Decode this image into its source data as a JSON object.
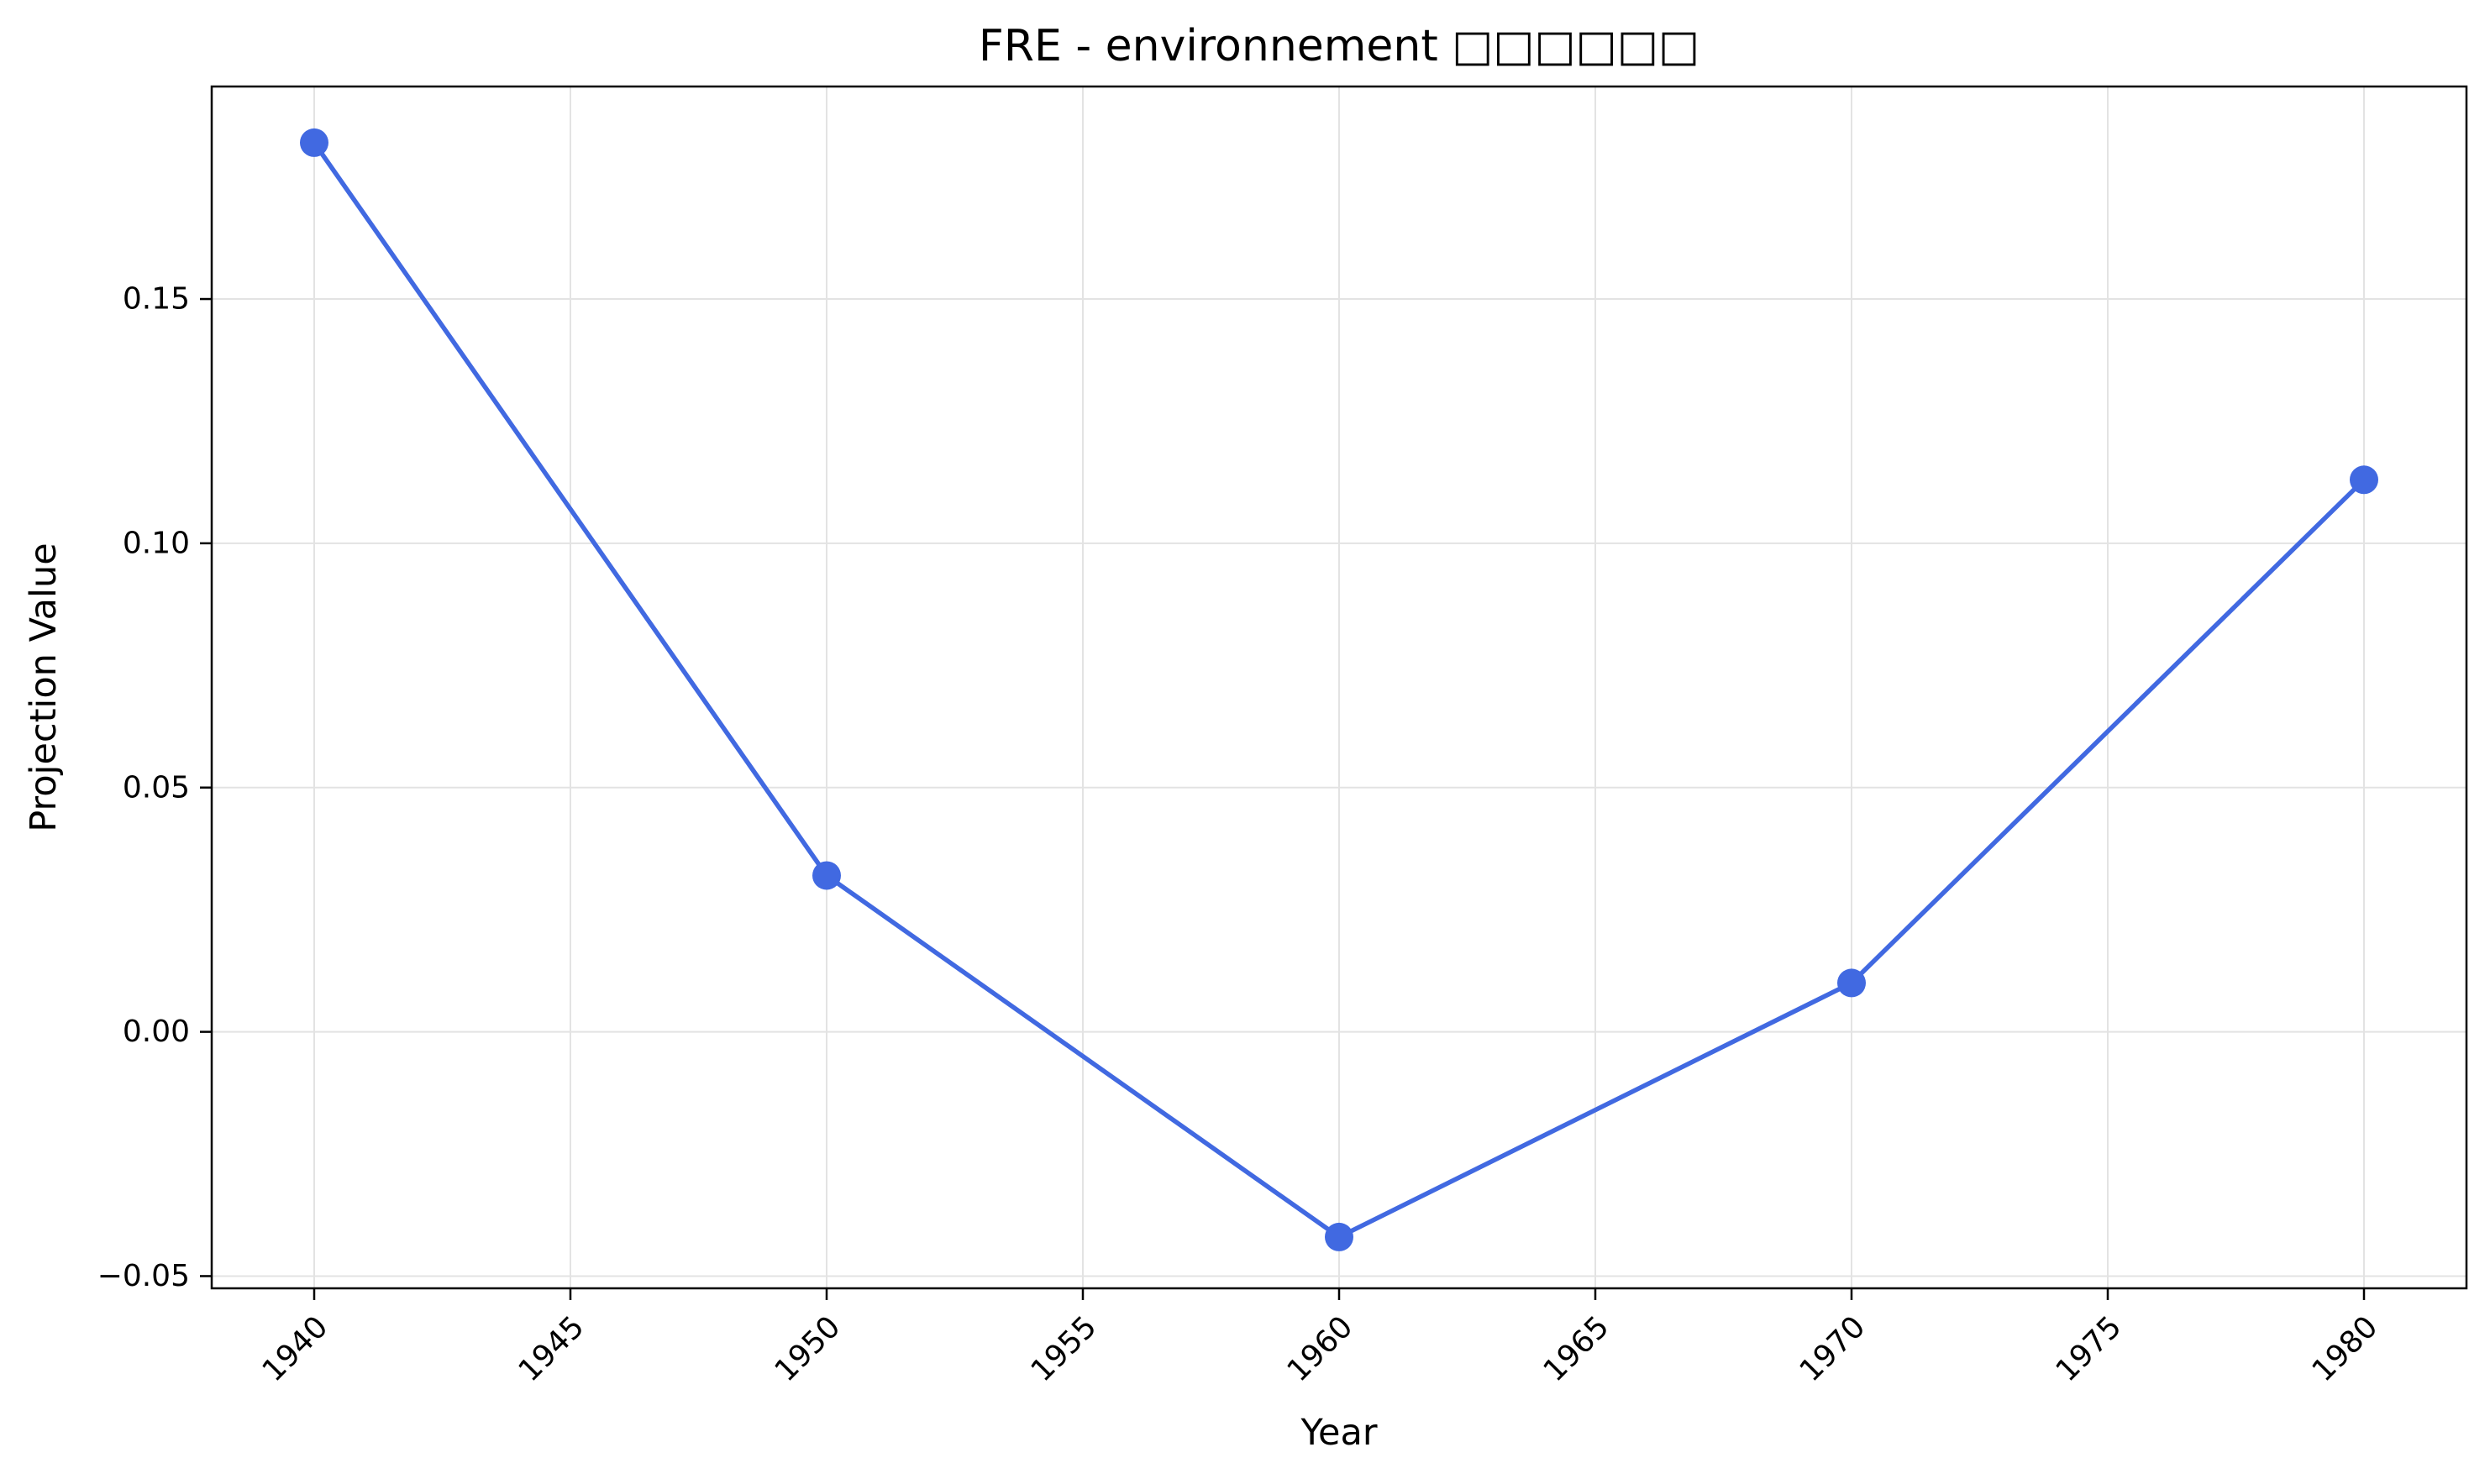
{
  "chart_data": {
    "type": "line",
    "title": "FRE - environnement □□□□□□",
    "xlabel": "Year",
    "ylabel": "Projection Value",
    "xlim": [
      1938,
      1982
    ],
    "ylim": [
      -0.0525,
      0.1935
    ],
    "x_ticks": [
      1940,
      1945,
      1950,
      1955,
      1960,
      1965,
      1970,
      1975,
      1980
    ],
    "y_ticks": [
      -0.05,
      0.0,
      0.05,
      0.1,
      0.15
    ],
    "y_tick_labels": [
      "−0.05",
      "0.00",
      "0.05",
      "0.10",
      "0.15"
    ],
    "grid": true,
    "series": [
      {
        "color": "#4169e1",
        "x": [
          1940,
          1950,
          1960,
          1970,
          1980
        ],
        "y": [
          0.182,
          0.032,
          -0.042,
          0.01,
          0.113
        ]
      }
    ]
  }
}
